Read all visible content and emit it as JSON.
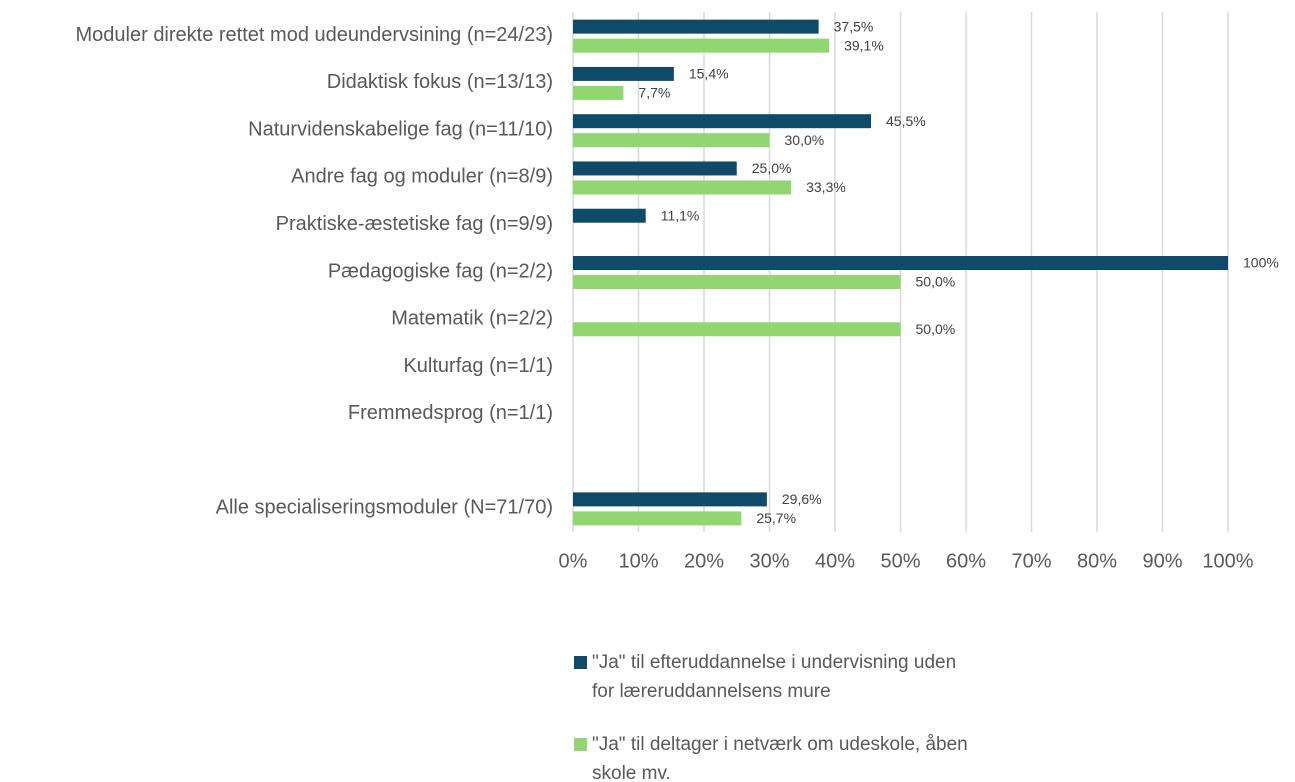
{
  "chart_data": {
    "type": "bar",
    "orientation": "horizontal",
    "categories": [
      "Moduler direkte rettet mod udeundervsining (n=24/23)",
      "Didaktisk fokus (n=13/13)",
      "Naturvidenskabelige fag (n=11/10)",
      "Andre fag og moduler (n=8/9)",
      "Praktiske-æstetiske fag (n=9/9)",
      "Pædagogiske fag (n=2/2)",
      "Matematik (n=2/2)",
      "Kulturfag (n=1/1)",
      "Fremmedsprog (n=1/1)",
      null,
      "Alle specialiseringsmoduler (N=71/70)"
    ],
    "series": [
      {
        "name": "\"Ja\" til efteruddannelse i undervisning uden for læreruddannelsens mure",
        "color": "#0f4b69",
        "values": [
          37.5,
          15.4,
          45.5,
          25.0,
          11.1,
          100,
          null,
          null,
          null,
          null,
          29.6
        ],
        "value_labels": [
          "37,5%",
          "15,4%",
          "45,5%",
          "25,0%",
          "11,1%",
          "100%",
          null,
          null,
          null,
          null,
          "29,6%"
        ]
      },
      {
        "name": "\"Ja\" til deltager i netværk om udeskole, åben skole mv.",
        "color": "#92d672",
        "values": [
          39.1,
          7.7,
          30.0,
          33.3,
          null,
          50.0,
          50.0,
          null,
          null,
          null,
          25.7
        ],
        "value_labels": [
          "39,1%",
          "7,7%",
          "30,0%",
          "33,3%",
          null,
          "50,0%",
          "50,0%",
          null,
          null,
          null,
          "25,7%"
        ]
      }
    ],
    "xlim": [
      0,
      100
    ],
    "xticks": [
      {
        "value": 0,
        "label": "0%"
      },
      {
        "value": 10,
        "label": "10%"
      },
      {
        "value": 20,
        "label": "20%"
      },
      {
        "value": 30,
        "label": "30%"
      },
      {
        "value": 40,
        "label": "40%"
      },
      {
        "value": 50,
        "label": "50%"
      },
      {
        "value": 60,
        "label": "60%"
      },
      {
        "value": 70,
        "label": "70%"
      },
      {
        "value": 80,
        "label": "80%"
      },
      {
        "value": 90,
        "label": "90%"
      },
      {
        "value": 100,
        "label": "100%"
      }
    ],
    "grid": true,
    "legend": "bottom"
  }
}
